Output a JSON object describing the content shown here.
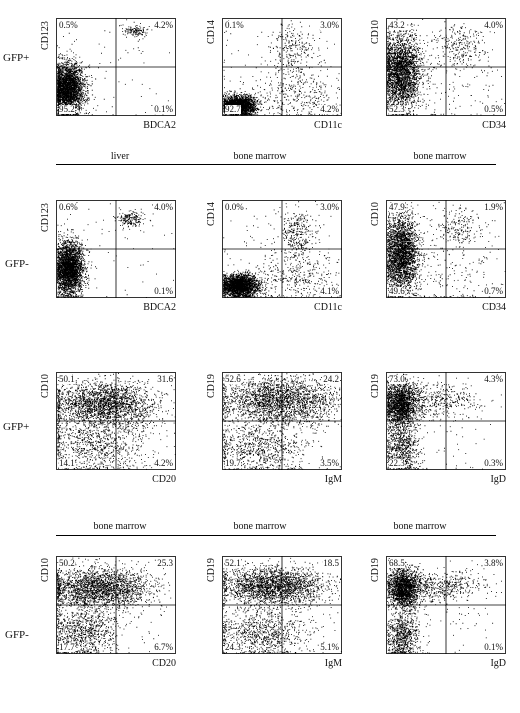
{
  "row_labels": [
    "GFP+",
    "GFP-",
    "GFP+",
    "GFP-"
  ],
  "tissues_top": [
    "liver",
    "bone marrow",
    "bone marrow"
  ],
  "tissues_bottom": [
    "bone marrow",
    "bone marrow",
    "bone marrow"
  ],
  "chart_data": [
    {
      "type": "scatter",
      "row": 0,
      "col": 0,
      "xlabel": "BDCA2",
      "ylabel": "CD123",
      "quadrants": {
        "ul": "0.5%",
        "ur": "4.2%",
        "ll": "95.2",
        "lr": "0.1%"
      },
      "populations": [
        {
          "x": 0.09,
          "y": 0.28,
          "sx": 0.07,
          "sy": 0.13,
          "w": 0.94
        },
        {
          "x": 0.66,
          "y": 0.88,
          "sx": 0.06,
          "sy": 0.03,
          "w": 0.04
        },
        {
          "x": 0.5,
          "y": 0.5,
          "sx": 0.28,
          "sy": 0.3,
          "w": 0.02
        }
      ]
    },
    {
      "type": "scatter",
      "row": 0,
      "col": 1,
      "xlabel": "CD11c",
      "ylabel": "CD14",
      "quadrants": {
        "ul": "0.1%",
        "ur": "3.0%",
        "ll": "92.7",
        "lr": "4.2%"
      },
      "populations": [
        {
          "x": 0.13,
          "y": 0.1,
          "sx": 0.07,
          "sy": 0.05,
          "w": 0.78
        },
        {
          "x": 0.6,
          "y": 0.68,
          "sx": 0.1,
          "sy": 0.15,
          "w": 0.08
        },
        {
          "x": 0.62,
          "y": 0.2,
          "sx": 0.2,
          "sy": 0.12,
          "w": 0.1
        },
        {
          "x": 0.45,
          "y": 0.45,
          "sx": 0.3,
          "sy": 0.3,
          "w": 0.04
        }
      ]
    },
    {
      "type": "scatter",
      "row": 0,
      "col": 2,
      "xlabel": "CD34",
      "ylabel": "CD10",
      "quadrants": {
        "ul": "43.2",
        "ur": "4.0%",
        "ll": "52.3",
        "lr": "0.5%"
      },
      "populations": [
        {
          "x": 0.12,
          "y": 0.45,
          "sx": 0.08,
          "sy": 0.2,
          "w": 0.86
        },
        {
          "x": 0.62,
          "y": 0.72,
          "sx": 0.12,
          "sy": 0.12,
          "w": 0.08
        },
        {
          "x": 0.5,
          "y": 0.4,
          "sx": 0.3,
          "sy": 0.3,
          "w": 0.06
        }
      ]
    },
    {
      "type": "scatter",
      "row": 1,
      "col": 0,
      "xlabel": "BDCA2",
      "ylabel": "CD123",
      "quadrants": {
        "ul": "0.6%",
        "ur": "4.0%",
        "ll": "",
        "lr": "0.1%"
      },
      "populations": [
        {
          "x": 0.1,
          "y": 0.3,
          "sx": 0.06,
          "sy": 0.14,
          "w": 0.92
        },
        {
          "x": 0.62,
          "y": 0.82,
          "sx": 0.06,
          "sy": 0.04,
          "w": 0.06
        },
        {
          "x": 0.5,
          "y": 0.5,
          "sx": 0.28,
          "sy": 0.3,
          "w": 0.02
        }
      ]
    },
    {
      "type": "scatter",
      "row": 1,
      "col": 1,
      "xlabel": "CD11c",
      "ylabel": "CD14",
      "quadrants": {
        "ul": "0.0%",
        "ur": "3.0%",
        "ll": "",
        "lr": "4.1%"
      },
      "populations": [
        {
          "x": 0.14,
          "y": 0.12,
          "sx": 0.08,
          "sy": 0.06,
          "w": 0.76
        },
        {
          "x": 0.62,
          "y": 0.66,
          "sx": 0.08,
          "sy": 0.14,
          "w": 0.1
        },
        {
          "x": 0.65,
          "y": 0.2,
          "sx": 0.18,
          "sy": 0.12,
          "w": 0.1
        },
        {
          "x": 0.45,
          "y": 0.45,
          "sx": 0.3,
          "sy": 0.3,
          "w": 0.04
        }
      ]
    },
    {
      "type": "scatter",
      "row": 1,
      "col": 2,
      "xlabel": "CD34",
      "ylabel": "CD10",
      "quadrants": {
        "ul": "47.9",
        "ur": "1.9%",
        "ll": "49.6",
        "lr": "0.7%"
      },
      "populations": [
        {
          "x": 0.12,
          "y": 0.45,
          "sx": 0.07,
          "sy": 0.2,
          "w": 0.86
        },
        {
          "x": 0.62,
          "y": 0.74,
          "sx": 0.1,
          "sy": 0.1,
          "w": 0.06
        },
        {
          "x": 0.55,
          "y": 0.3,
          "sx": 0.25,
          "sy": 0.25,
          "w": 0.08
        }
      ]
    },
    {
      "type": "scatter",
      "row": 2,
      "col": 0,
      "xlabel": "CD20",
      "ylabel": "CD10",
      "quadrants": {
        "ul": "50.1",
        "ur": "31.6",
        "ll": "14.1",
        "lr": "4.2%"
      },
      "populations": [
        {
          "x": 0.4,
          "y": 0.68,
          "sx": 0.22,
          "sy": 0.12,
          "w": 0.7
        },
        {
          "x": 0.3,
          "y": 0.25,
          "sx": 0.22,
          "sy": 0.15,
          "w": 0.25
        },
        {
          "x": 0.5,
          "y": 0.5,
          "sx": 0.3,
          "sy": 0.3,
          "w": 0.05
        }
      ]
    },
    {
      "type": "scatter",
      "row": 2,
      "col": 1,
      "xlabel": "IgM",
      "ylabel": "CD19",
      "quadrants": {
        "ul": "52.6",
        "ur": "24.2",
        "ll": "19.7",
        "lr": "3.5%"
      },
      "populations": [
        {
          "x": 0.48,
          "y": 0.72,
          "sx": 0.25,
          "sy": 0.12,
          "w": 0.72
        },
        {
          "x": 0.3,
          "y": 0.22,
          "sx": 0.2,
          "sy": 0.13,
          "w": 0.23
        },
        {
          "x": 0.5,
          "y": 0.5,
          "sx": 0.3,
          "sy": 0.3,
          "w": 0.05
        }
      ]
    },
    {
      "type": "scatter",
      "row": 2,
      "col": 2,
      "xlabel": "IgD",
      "ylabel": "CD19",
      "quadrants": {
        "ul": "73.0",
        "ur": "4.3%",
        "ll": "22.3",
        "lr": "0.3%"
      },
      "populations": [
        {
          "x": 0.12,
          "y": 0.68,
          "sx": 0.07,
          "sy": 0.12,
          "w": 0.62
        },
        {
          "x": 0.4,
          "y": 0.72,
          "sx": 0.18,
          "sy": 0.09,
          "w": 0.12
        },
        {
          "x": 0.12,
          "y": 0.22,
          "sx": 0.07,
          "sy": 0.13,
          "w": 0.23
        },
        {
          "x": 0.5,
          "y": 0.5,
          "sx": 0.3,
          "sy": 0.3,
          "w": 0.03
        }
      ]
    },
    {
      "type": "scatter",
      "row": 3,
      "col": 0,
      "xlabel": "CD20",
      "ylabel": "CD10",
      "quadrants": {
        "ul": "50.2",
        "ur": "25.3",
        "ll": "17.7",
        "lr": "6.7%"
      },
      "populations": [
        {
          "x": 0.35,
          "y": 0.68,
          "sx": 0.22,
          "sy": 0.1,
          "w": 0.68
        },
        {
          "x": 0.22,
          "y": 0.22,
          "sx": 0.14,
          "sy": 0.14,
          "w": 0.27
        },
        {
          "x": 0.5,
          "y": 0.5,
          "sx": 0.3,
          "sy": 0.3,
          "w": 0.05
        }
      ]
    },
    {
      "type": "scatter",
      "row": 3,
      "col": 1,
      "xlabel": "IgM",
      "ylabel": "CD19",
      "quadrants": {
        "ul": "52.1",
        "ur": "18.5",
        "ll": "24.3",
        "lr": "5.1%"
      },
      "populations": [
        {
          "x": 0.42,
          "y": 0.7,
          "sx": 0.22,
          "sy": 0.1,
          "w": 0.7
        },
        {
          "x": 0.32,
          "y": 0.2,
          "sx": 0.2,
          "sy": 0.12,
          "w": 0.26
        },
        {
          "x": 0.5,
          "y": 0.5,
          "sx": 0.3,
          "sy": 0.3,
          "w": 0.04
        }
      ]
    },
    {
      "type": "scatter",
      "row": 3,
      "col": 2,
      "xlabel": "IgD",
      "ylabel": "CD19",
      "quadrants": {
        "ul": "68.5",
        "ur": "3.8%",
        "ll": "",
        "lr": "0.1%"
      },
      "populations": [
        {
          "x": 0.14,
          "y": 0.68,
          "sx": 0.07,
          "sy": 0.1,
          "w": 0.6
        },
        {
          "x": 0.45,
          "y": 0.7,
          "sx": 0.18,
          "sy": 0.08,
          "w": 0.14
        },
        {
          "x": 0.13,
          "y": 0.2,
          "sx": 0.07,
          "sy": 0.13,
          "w": 0.23
        },
        {
          "x": 0.5,
          "y": 0.5,
          "sx": 0.3,
          "sy": 0.3,
          "w": 0.03
        }
      ]
    }
  ]
}
